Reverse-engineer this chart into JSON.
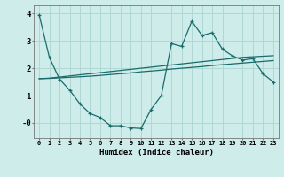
{
  "xlabel": "Humidex (Indice chaleur)",
  "bg_color": "#ceecea",
  "line_color": "#1a6b6b",
  "grid_color": "#afd8d4",
  "x_ticks": [
    0,
    1,
    2,
    3,
    4,
    5,
    6,
    7,
    8,
    9,
    10,
    11,
    12,
    13,
    14,
    15,
    16,
    17,
    18,
    19,
    20,
    21,
    22,
    23
  ],
  "ylim": [
    -0.55,
    4.3
  ],
  "xlim": [
    -0.5,
    23.5
  ],
  "series1_x": [
    0,
    1,
    2,
    3,
    4,
    5,
    6,
    7,
    8,
    9,
    10,
    11,
    12,
    13,
    14,
    15,
    16,
    17,
    18,
    19,
    20,
    21,
    22,
    23
  ],
  "series1_y": [
    3.95,
    2.4,
    1.6,
    1.2,
    0.7,
    0.35,
    0.2,
    -0.1,
    -0.1,
    -0.18,
    -0.2,
    0.5,
    1.0,
    2.9,
    2.8,
    3.72,
    3.2,
    3.3,
    2.7,
    2.45,
    2.3,
    2.35,
    1.8,
    1.5
  ],
  "series2_x": [
    0,
    1,
    2,
    3,
    4,
    5,
    6,
    7,
    8,
    9,
    10,
    11,
    12,
    13,
    14,
    15,
    16,
    17,
    18,
    19,
    20,
    21,
    22,
    23
  ],
  "series2_y": [
    1.62,
    1.64,
    1.68,
    1.72,
    1.76,
    1.8,
    1.84,
    1.88,
    1.92,
    1.96,
    2.0,
    2.04,
    2.08,
    2.12,
    2.16,
    2.2,
    2.24,
    2.28,
    2.32,
    2.36,
    2.4,
    2.42,
    2.44,
    2.46
  ],
  "series3_x": [
    0,
    1,
    2,
    3,
    4,
    5,
    6,
    7,
    8,
    9,
    10,
    11,
    12,
    13,
    14,
    15,
    16,
    17,
    18,
    19,
    20,
    21,
    22,
    23
  ],
  "series3_y": [
    1.62,
    1.63,
    1.65,
    1.67,
    1.69,
    1.71,
    1.74,
    1.77,
    1.8,
    1.83,
    1.87,
    1.9,
    1.93,
    1.97,
    2.0,
    2.03,
    2.06,
    2.1,
    2.13,
    2.16,
    2.19,
    2.22,
    2.25,
    2.28
  ]
}
